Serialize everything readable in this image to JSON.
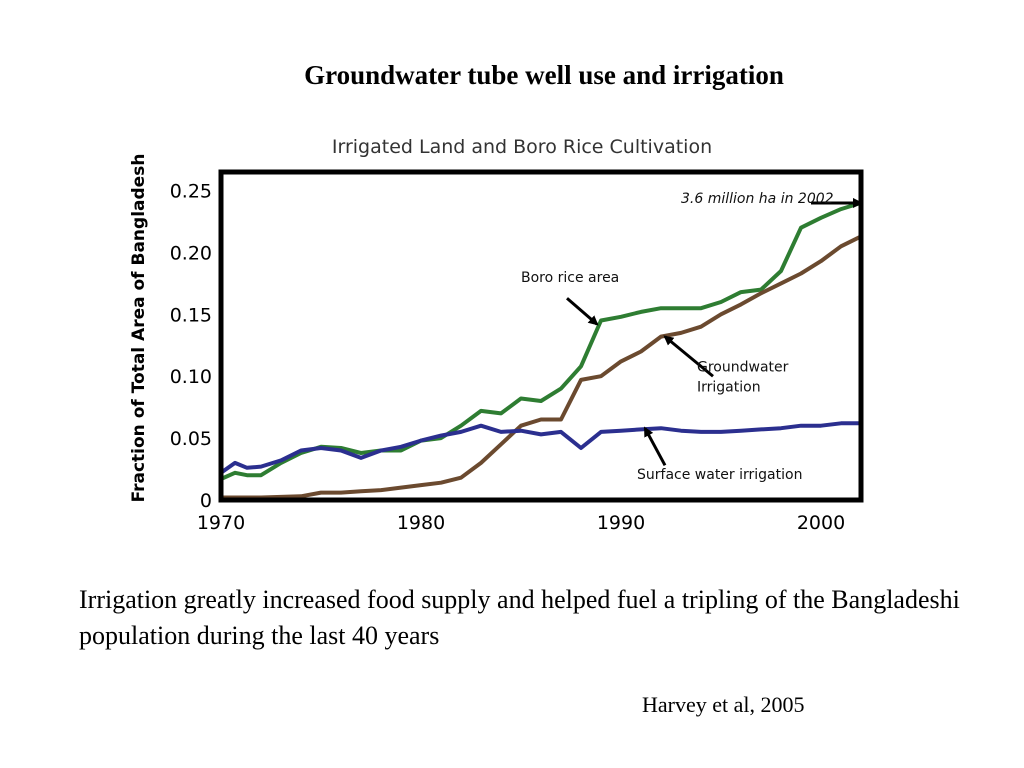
{
  "slide": {
    "title": "Groundwater tube well use and irrigation",
    "caption": "Irrigation greatly increased food supply and helped fuel a tripling of the Bangladeshi population during the last 40 years",
    "credit": "Harvey et al, 2005"
  },
  "chart_data": {
    "type": "line",
    "title": "Irrigated Land and Boro Rice Cultivation",
    "ylabel": "Fraction of Total Area of Bangladesh",
    "xlabel": "",
    "xlim": [
      1970,
      2002
    ],
    "ylim": [
      0,
      0.265
    ],
    "x_ticks": [
      {
        "value": 1970,
        "label": "1970"
      },
      {
        "value": 1980,
        "label": "1980"
      },
      {
        "value": 1990,
        "label": "1990"
      },
      {
        "value": 2000,
        "label": "2000"
      }
    ],
    "y_ticks": [
      {
        "value": 0,
        "label": "0"
      },
      {
        "value": 0.05,
        "label": "0.05"
      },
      {
        "value": 0.1,
        "label": "0.10"
      },
      {
        "value": 0.15,
        "label": "0.15"
      },
      {
        "value": 0.2,
        "label": "0.20"
      },
      {
        "value": 0.25,
        "label": "0.25"
      }
    ],
    "grid": false,
    "series": [
      {
        "name": "Boro rice area",
        "color": "#2e7d32",
        "points": [
          [
            1970,
            0.017
          ],
          [
            1970.7,
            0.022
          ],
          [
            1971.3,
            0.02
          ],
          [
            1972,
            0.02
          ],
          [
            1973,
            0.03
          ],
          [
            1974,
            0.038
          ],
          [
            1975,
            0.043
          ],
          [
            1976,
            0.042
          ],
          [
            1977,
            0.038
          ],
          [
            1978,
            0.04
          ],
          [
            1979,
            0.04
          ],
          [
            1980,
            0.048
          ],
          [
            1981,
            0.05
          ],
          [
            1982,
            0.06
          ],
          [
            1983,
            0.072
          ],
          [
            1984,
            0.07
          ],
          [
            1985,
            0.082
          ],
          [
            1986,
            0.08
          ],
          [
            1987,
            0.09
          ],
          [
            1988,
            0.108
          ],
          [
            1989,
            0.145
          ],
          [
            1990,
            0.148
          ],
          [
            1991,
            0.152
          ],
          [
            1992,
            0.155
          ],
          [
            1993,
            0.155
          ],
          [
            1994,
            0.155
          ],
          [
            1995,
            0.16
          ],
          [
            1996,
            0.168
          ],
          [
            1997,
            0.17
          ],
          [
            1998,
            0.185
          ],
          [
            1999,
            0.22
          ],
          [
            2000,
            0.228
          ],
          [
            2001,
            0.235
          ],
          [
            2002,
            0.24
          ]
        ]
      },
      {
        "name": "Groundwater Irrigation",
        "color": "#6b4a2f",
        "points": [
          [
            1970,
            0.002
          ],
          [
            1972,
            0.002
          ],
          [
            1974,
            0.003
          ],
          [
            1975,
            0.006
          ],
          [
            1976,
            0.006
          ],
          [
            1977,
            0.007
          ],
          [
            1978,
            0.008
          ],
          [
            1979,
            0.01
          ],
          [
            1980,
            0.012
          ],
          [
            1981,
            0.014
          ],
          [
            1982,
            0.018
          ],
          [
            1983,
            0.03
          ],
          [
            1984,
            0.045
          ],
          [
            1985,
            0.06
          ],
          [
            1986,
            0.065
          ],
          [
            1987,
            0.065
          ],
          [
            1988,
            0.097
          ],
          [
            1989,
            0.1
          ],
          [
            1990,
            0.112
          ],
          [
            1991,
            0.12
          ],
          [
            1992,
            0.132
          ],
          [
            1993,
            0.135
          ],
          [
            1994,
            0.14
          ],
          [
            1995,
            0.15
          ],
          [
            1996,
            0.158
          ],
          [
            1997,
            0.167
          ],
          [
            1998,
            0.175
          ],
          [
            1999,
            0.183
          ],
          [
            2000,
            0.193
          ],
          [
            2001,
            0.205
          ],
          [
            2002,
            0.213
          ]
        ]
      },
      {
        "name": "Surface water irrigation",
        "color": "#2b2f8f",
        "points": [
          [
            1970,
            0.022
          ],
          [
            1970.7,
            0.03
          ],
          [
            1971.3,
            0.026
          ],
          [
            1972,
            0.027
          ],
          [
            1973,
            0.032
          ],
          [
            1974,
            0.04
          ],
          [
            1975,
            0.042
          ],
          [
            1976,
            0.04
          ],
          [
            1977,
            0.034
          ],
          [
            1978,
            0.04
          ],
          [
            1979,
            0.043
          ],
          [
            1980,
            0.048
          ],
          [
            1981,
            0.052
          ],
          [
            1982,
            0.055
          ],
          [
            1983,
            0.06
          ],
          [
            1984,
            0.055
          ],
          [
            1985,
            0.056
          ],
          [
            1986,
            0.053
          ],
          [
            1987,
            0.055
          ],
          [
            1988,
            0.042
          ],
          [
            1989,
            0.055
          ],
          [
            1990,
            0.056
          ],
          [
            1991,
            0.057
          ],
          [
            1992,
            0.058
          ],
          [
            1993,
            0.056
          ],
          [
            1994,
            0.055
          ],
          [
            1995,
            0.055
          ],
          [
            1996,
            0.056
          ],
          [
            1997,
            0.057
          ],
          [
            1998,
            0.058
          ],
          [
            1999,
            0.06
          ],
          [
            2000,
            0.06
          ],
          [
            2001,
            0.062
          ],
          [
            2002,
            0.062
          ]
        ]
      }
    ],
    "annotations": [
      {
        "name": "annotation-boro",
        "text": "Boro rice area",
        "lines": [
          "Boro rice area"
        ],
        "at": [
          1988.8,
          0.142
        ],
        "from": [
          1987.3,
          0.163
        ],
        "label_at": [
          1985,
          0.176
        ],
        "italic": false
      },
      {
        "name": "annotation-groundwater",
        "text": "Groundwater Irrigation",
        "lines": [
          "Groundwater",
          "Irrigation"
        ],
        "at": [
          1992.2,
          0.132
        ],
        "from": [
          1994.6,
          0.1
        ],
        "label_at": [
          1993.8,
          0.104
        ],
        "italic": false
      },
      {
        "name": "annotation-surface",
        "text": "Surface water irrigation",
        "lines": [
          "Surface water irrigation"
        ],
        "at": [
          1991.2,
          0.058
        ],
        "from": [
          1992.2,
          0.028
        ],
        "label_at": [
          1990.8,
          0.017
        ],
        "italic": false
      },
      {
        "name": "annotation-2002",
        "text": "3.6 million ha in 2002",
        "lines": [
          "3.6 million ha in 2002"
        ],
        "at": [
          2002,
          0.24
        ],
        "from": [
          1999.5,
          0.24
        ],
        "label_at": [
          1993,
          0.24
        ],
        "italic": true
      }
    ]
  }
}
